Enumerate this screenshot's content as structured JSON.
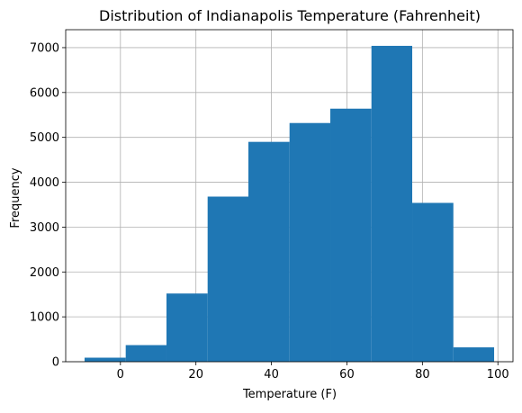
{
  "chart_data": {
    "type": "bar",
    "title": "Distribution of Indianapolis Temperature (Fahrenheit)",
    "xlabel": "Temperature (F)",
    "ylabel": "Frequency",
    "bins": [
      {
        "x0": -9.5,
        "x1": 1.4,
        "value": 90
      },
      {
        "x0": 1.4,
        "x1": 12.2,
        "value": 370
      },
      {
        "x0": 12.2,
        "x1": 23.1,
        "value": 1520
      },
      {
        "x0": 23.1,
        "x1": 33.9,
        "value": 3680
      },
      {
        "x0": 33.9,
        "x1": 44.8,
        "value": 4900
      },
      {
        "x0": 44.8,
        "x1": 55.6,
        "value": 5320
      },
      {
        "x0": 55.6,
        "x1": 66.5,
        "value": 5640
      },
      {
        "x0": 66.5,
        "x1": 77.3,
        "value": 7040
      },
      {
        "x0": 77.3,
        "x1": 88.2,
        "value": 3540
      },
      {
        "x0": 88.2,
        "x1": 99.0,
        "value": 320
      }
    ],
    "xlim": [
      -14.5,
      104.0
    ],
    "ylim": [
      0,
      7400
    ],
    "xticks": [
      0,
      20,
      40,
      60,
      80,
      100
    ],
    "yticks": [
      0,
      1000,
      2000,
      3000,
      4000,
      5000,
      6000,
      7000
    ],
    "xtick_labels": [
      "0",
      "20",
      "40",
      "60",
      "80",
      "100"
    ],
    "ytick_labels": [
      "0",
      "1000",
      "2000",
      "3000",
      "4000",
      "5000",
      "6000",
      "7000"
    ],
    "grid": true,
    "legend": "none"
  },
  "colors": {
    "bar": "#1f77b4",
    "grid": "#b0b0b0",
    "axis": "#000000"
  }
}
